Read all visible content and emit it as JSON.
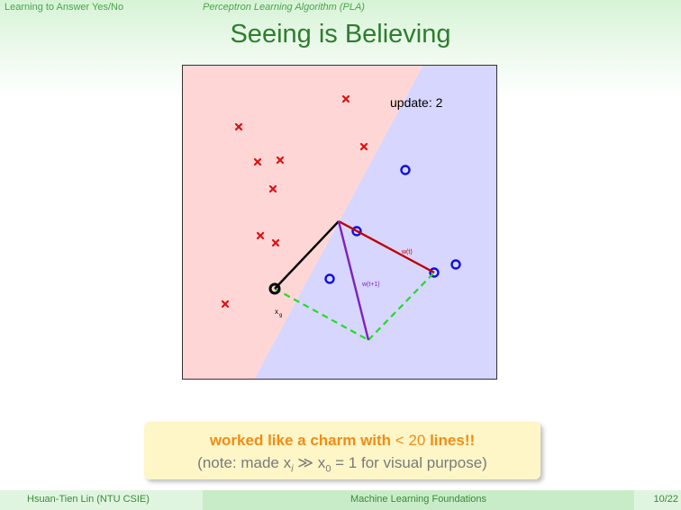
{
  "header": {
    "section": "Learning to Answer Yes/No",
    "subsection": "Perceptron Learning Algorithm (PLA)"
  },
  "title": "Seeing is Believing",
  "plot": {
    "update_label": "update: 2",
    "w_t_label": "w(t)",
    "w_t1_label": "w(t+1)",
    "x_label": "x",
    "x_subscript": "9",
    "colors": {
      "negative_region": "#ffd6d6",
      "positive_region": "#d6d6ff",
      "cross": "#e01010",
      "circle": "#1010e0",
      "w_t": "#c00000",
      "w_t1": "#8020c0",
      "x_vector": "#000000",
      "construction": "#22dd22"
    }
  },
  "note": {
    "line1_a": "worked like a charm with ",
    "line1_b": "< 20",
    "line1_c": " lines!!",
    "line2": "(note: made x",
    "line2_i": "i",
    "line2_mid": " ≫ x",
    "line2_0": "0",
    "line2_end": " = 1 for visual purpose)"
  },
  "footer": {
    "author": "Hsuan-Tien Lin (NTU CSIE)",
    "course": "Machine Learning Foundations",
    "page": "10/22"
  }
}
